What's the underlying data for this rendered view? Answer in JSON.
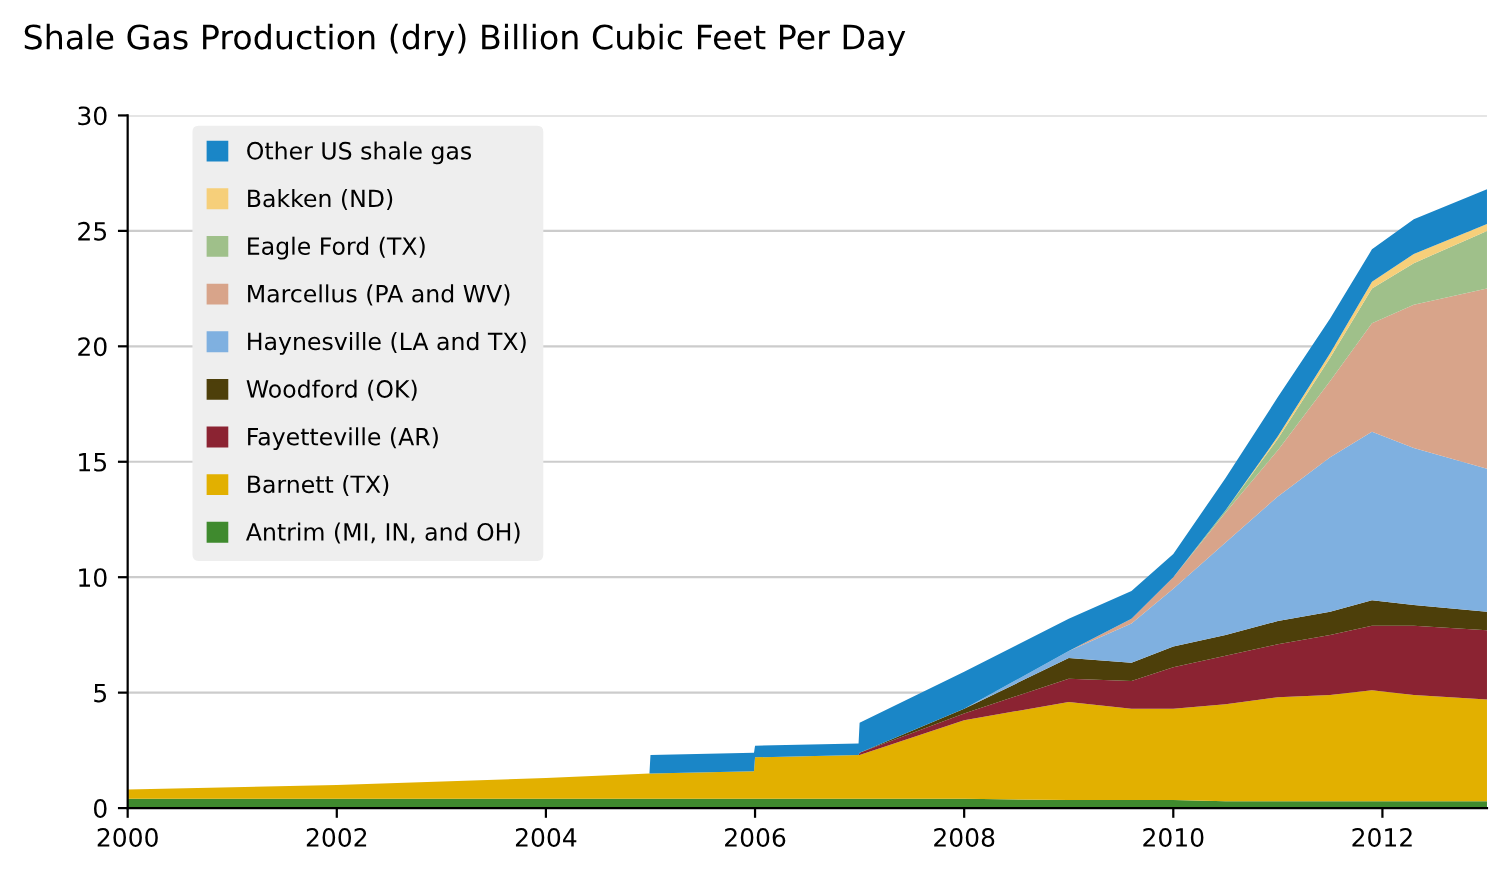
{
  "chart_data": {
    "type": "area",
    "stacked": true,
    "title": "Shale Gas Production (dry) Billion Cubic Feet Per Day",
    "x": [
      2000,
      2002,
      2004,
      2004.99,
      2005,
      2005.99,
      2006,
      2006.99,
      2007,
      2008,
      2009,
      2009.6,
      2010,
      2010.5,
      2011,
      2011.5,
      2011.9,
      2012.3,
      2013
    ],
    "series": [
      {
        "name": "Antrim (MI, IN, and OH)",
        "color": "#3f8a2e",
        "values": [
          0.4,
          0.4,
          0.4,
          0.4,
          0.4,
          0.4,
          0.4,
          0.4,
          0.4,
          0.4,
          0.35,
          0.35,
          0.35,
          0.3,
          0.3,
          0.3,
          0.3,
          0.3,
          0.3
        ]
      },
      {
        "name": "Barnett (TX)",
        "color": "#e2b000",
        "values": [
          0.4,
          0.6,
          0.9,
          1.1,
          1.1,
          1.2,
          1.8,
          1.9,
          1.9,
          3.4,
          4.25,
          3.95,
          3.95,
          4.2,
          4.5,
          4.6,
          4.8,
          4.6,
          4.4
        ]
      },
      {
        "name": "Fayetteville (AR)",
        "color": "#8b2332",
        "values": [
          0,
          0,
          0,
          0,
          0,
          0,
          0,
          0,
          0.1,
          0.3,
          1.0,
          1.2,
          1.8,
          2.1,
          2.3,
          2.6,
          2.8,
          3.0,
          3.0
        ]
      },
      {
        "name": "Woodford (OK)",
        "color": "#4d3f0a",
        "values": [
          0,
          0,
          0,
          0,
          0,
          0,
          0,
          0,
          0,
          0.2,
          0.9,
          0.8,
          0.9,
          0.9,
          1.0,
          1.0,
          1.1,
          0.9,
          0.8
        ]
      },
      {
        "name": "Haynesville (LA and TX)",
        "color": "#7fb0e0",
        "values": [
          0,
          0,
          0,
          0,
          0,
          0,
          0,
          0,
          0,
          0,
          0.3,
          1.7,
          2.5,
          4.0,
          5.4,
          6.7,
          7.3,
          6.8,
          6.2
        ]
      },
      {
        "name": "Marcellus (PA and WV)",
        "color": "#d8a48a",
        "values": [
          0,
          0,
          0,
          0,
          0,
          0,
          0,
          0,
          0,
          0,
          0,
          0.2,
          0.5,
          1.3,
          2.0,
          3.3,
          4.7,
          6.2,
          7.8
        ]
      },
      {
        "name": "Eagle Ford (TX)",
        "color": "#9fc08a",
        "values": [
          0,
          0,
          0,
          0,
          0,
          0,
          0,
          0,
          0,
          0,
          0,
          0,
          0,
          0.1,
          0.5,
          1.0,
          1.5,
          1.8,
          2.5
        ]
      },
      {
        "name": "Bakken (ND)",
        "color": "#f6cf7a",
        "values": [
          0,
          0,
          0,
          0,
          0,
          0,
          0,
          0,
          0,
          0,
          0,
          0,
          0,
          0,
          0.1,
          0.2,
          0.3,
          0.4,
          0.3
        ]
      },
      {
        "name": "Other US shale gas",
        "color": "#1a86c7",
        "values": [
          0,
          0,
          0,
          0,
          0.8,
          0.8,
          0.5,
          0.5,
          1.3,
          1.6,
          1.4,
          1.2,
          1.0,
          1.4,
          1.7,
          1.5,
          1.4,
          1.5,
          1.5
        ]
      }
    ],
    "xlim": [
      2000,
      2013
    ],
    "xticks": [
      2000,
      2002,
      2004,
      2006,
      2008,
      2010,
      2012
    ],
    "ylim": [
      0,
      30
    ],
    "yticks": [
      0,
      5,
      10,
      15,
      20,
      25,
      30
    ],
    "grid": "y",
    "legend": "top left"
  }
}
